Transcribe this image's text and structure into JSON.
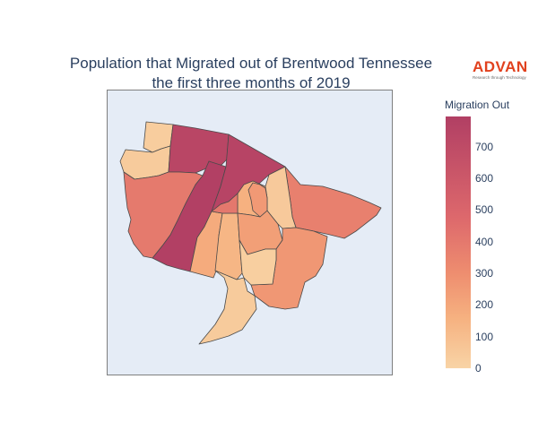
{
  "title_line1": "Population that Migrated out of Brentwood Tennessee",
  "title_line2": "the first three months of 2019",
  "logo": {
    "word": "ADVAN",
    "tagline": "Research through Technology",
    "color": "#e1411e"
  },
  "colorbar": {
    "title": "Migration Out",
    "min": 0,
    "max": 795,
    "ticks": [
      "0",
      "100",
      "200",
      "300",
      "400",
      "500",
      "600",
      "700"
    ],
    "colors": [
      "#f8d4a6",
      "#f6b180",
      "#ee8d6f",
      "#dd686c",
      "#b13f64"
    ]
  },
  "chart_data": {
    "type": "choropleth",
    "title": "Population that Migrated out of Brentwood Tennessee the first three months of 2019",
    "colorbar_title": "Migration Out",
    "value_range": [
      0,
      795
    ],
    "regions": [
      {
        "name": "",
        "value": 40
      },
      {
        "name": "",
        "value": 50
      },
      {
        "name": "",
        "value": 760
      },
      {
        "name": "",
        "value": 790
      },
      {
        "name": "",
        "value": 770
      },
      {
        "name": "",
        "value": 500
      },
      {
        "name": "",
        "value": 230
      },
      {
        "name": "",
        "value": 170
      },
      {
        "name": "",
        "value": 200
      },
      {
        "name": "",
        "value": 470
      },
      {
        "name": "",
        "value": 300
      },
      {
        "name": "",
        "value": 60
      },
      {
        "name": "",
        "value": 340
      },
      {
        "name": "",
        "value": 30
      },
      {
        "name": "",
        "value": 50
      },
      {
        "name": "",
        "value": 330
      },
      {
        "name": "",
        "value": 510
      }
    ]
  }
}
